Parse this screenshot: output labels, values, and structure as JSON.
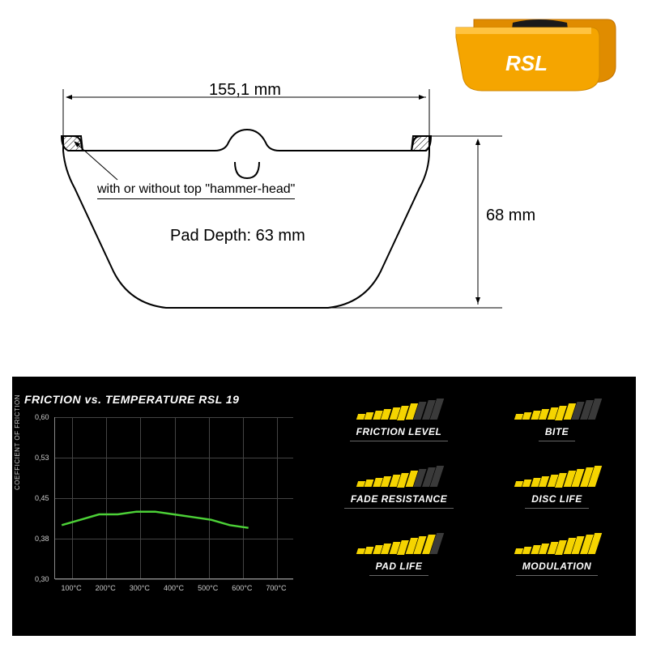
{
  "product": {
    "brand": "RSL",
    "pad_color": "#f5a500",
    "pad_accent": "#e08c00",
    "friction_color": "#1a1a1a"
  },
  "diagram": {
    "width_label": "155,1 mm",
    "height_label": "68 mm",
    "pad_depth_label": "Pad Depth: 63 mm",
    "callout": "with or without top \"hammer-head\"",
    "stroke": "#000000"
  },
  "chart": {
    "title": "FRICTION vs. TEMPERATURE RSL 19",
    "y_axis_label": "COEFFICIENT OF FRICTION",
    "y_ticks": [
      "0,60",
      "0,53",
      "0,45",
      "0,38",
      "0,30"
    ],
    "x_ticks": [
      "100°C",
      "200°C",
      "300°C",
      "400°C",
      "500°C",
      "600°C",
      "700°C"
    ],
    "line_color": "#4cd137",
    "grid_color": "#444444",
    "series": [
      {
        "x": 100,
        "y": 0.4
      },
      {
        "x": 150,
        "y": 0.41
      },
      {
        "x": 200,
        "y": 0.42
      },
      {
        "x": 250,
        "y": 0.42
      },
      {
        "x": 300,
        "y": 0.425
      },
      {
        "x": 350,
        "y": 0.425
      },
      {
        "x": 400,
        "y": 0.42
      },
      {
        "x": 450,
        "y": 0.415
      },
      {
        "x": 500,
        "y": 0.41
      },
      {
        "x": 550,
        "y": 0.4
      },
      {
        "x": 600,
        "y": 0.395
      }
    ],
    "x_domain": [
      80,
      720
    ],
    "y_domain": [
      0.3,
      0.6
    ]
  },
  "ratings": {
    "max_bars": 10,
    "on_color": "#f5d400",
    "off_color": "#3a3a3a",
    "items": [
      {
        "label": "FRICTION LEVEL",
        "value": 7
      },
      {
        "label": "BITE",
        "value": 7
      },
      {
        "label": "FADE RESISTANCE",
        "value": 7
      },
      {
        "label": "DISC LIFE",
        "value": 10
      },
      {
        "label": "PAD LIFE",
        "value": 9
      },
      {
        "label": "MODULATION",
        "value": 10
      }
    ]
  }
}
